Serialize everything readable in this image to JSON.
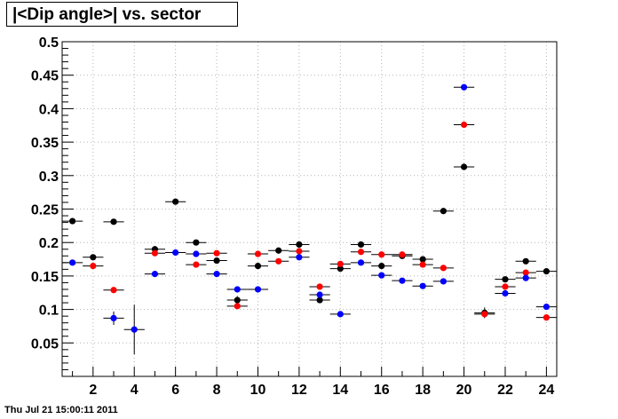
{
  "title": "|<Dip angle>| vs. sector",
  "timestamp": "Thu Jul 21 15:00:11 2011",
  "chart_data": {
    "type": "scatter",
    "title": "|<Dip angle>| vs. sector",
    "xlabel": "",
    "ylabel": "",
    "xlim": [
      0.5,
      24.5
    ],
    "ylim": [
      0,
      0.5
    ],
    "grid": true,
    "x_ticks": [
      2,
      4,
      6,
      8,
      10,
      12,
      14,
      16,
      18,
      20,
      22,
      24
    ],
    "y_ticks": [
      0.05,
      0.1,
      0.15,
      0.2,
      0.25,
      0.3,
      0.35,
      0.4,
      0.45,
      0.5
    ],
    "x_tick_labels": [
      "2",
      "4",
      "6",
      "8",
      "10",
      "12",
      "14",
      "16",
      "18",
      "20",
      "22",
      "24"
    ],
    "y_tick_labels": [
      "0.05",
      "0.1",
      "0.15",
      "0.2",
      "0.25",
      "0.3",
      "0.35",
      "0.4",
      "0.45",
      "0.5"
    ],
    "x": [
      1,
      2,
      3,
      4,
      5,
      6,
      7,
      8,
      9,
      10,
      11,
      12,
      13,
      14,
      15,
      16,
      17,
      18,
      19,
      20,
      21,
      22,
      23,
      24
    ],
    "series": [
      {
        "color": "#000000",
        "values": [
          0.232,
          0.178,
          0.231,
          null,
          0.19,
          0.261,
          0.2,
          0.173,
          0.114,
          0.165,
          0.188,
          0.197,
          0.114,
          0.161,
          0.197,
          0.165,
          0.18,
          0.175,
          0.247,
          0.313,
          0.095,
          0.145,
          0.172,
          0.157
        ],
        "errors": [
          0,
          0,
          0,
          0,
          0,
          0,
          0,
          0,
          0.006,
          0,
          0,
          0,
          0,
          0,
          0,
          0,
          0,
          0,
          0,
          0,
          0.008,
          0,
          0,
          0
        ]
      },
      {
        "color": "#ff0000",
        "values": [
          null,
          0.165,
          0.129,
          null,
          0.184,
          null,
          0.167,
          0.184,
          0.105,
          0.183,
          0.172,
          0.187,
          0.134,
          0.168,
          0.186,
          0.182,
          0.182,
          0.167,
          0.162,
          0.376,
          0.093,
          0.134,
          0.155,
          0.088
        ],
        "errors": [
          0,
          0,
          0,
          0,
          0,
          0,
          0,
          0,
          0,
          0,
          0,
          0,
          0,
          0,
          0,
          0,
          0,
          0,
          0,
          0,
          0,
          0,
          0,
          0
        ]
      },
      {
        "color": "#0000ff",
        "values": [
          0.17,
          null,
          0.087,
          0.07,
          0.153,
          0.185,
          0.183,
          0.153,
          0.13,
          0.13,
          null,
          0.178,
          0.122,
          0.093,
          0.17,
          0.151,
          0.143,
          0.135,
          0.142,
          0.432,
          null,
          0.124,
          0.147,
          0.104
        ],
        "errors": [
          0,
          0,
          0.01,
          0.037,
          0,
          0,
          0,
          0,
          0,
          0,
          0,
          0,
          0,
          0,
          0,
          0,
          0,
          0,
          0,
          0,
          0,
          0,
          0,
          0
        ]
      }
    ]
  }
}
